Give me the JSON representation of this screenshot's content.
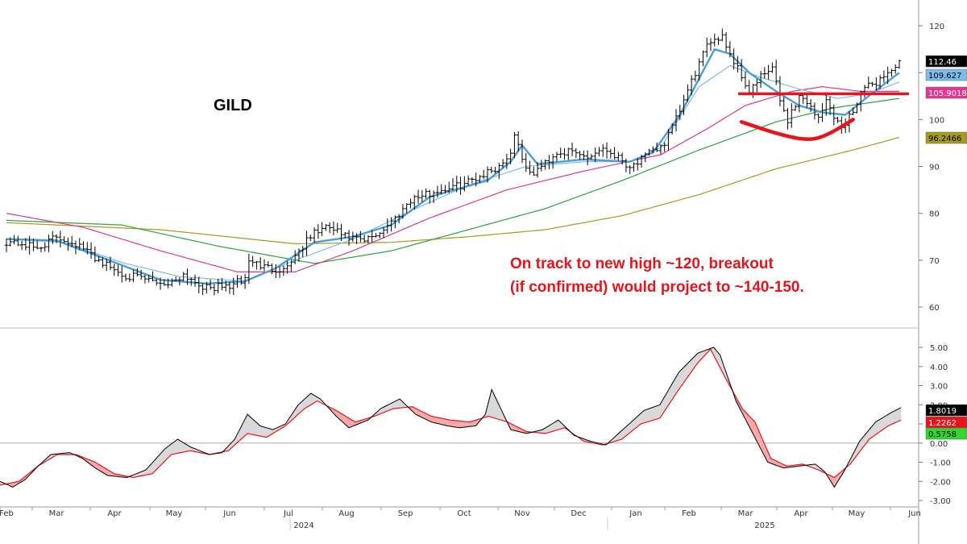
{
  "title": "GILD",
  "annotation": {
    "line1": "On track to new high ~120, breakout",
    "line2": "(if confirmed) would project to ~140-150."
  },
  "chart_data": [
    {
      "type": "line",
      "panel": "price",
      "title": "GILD",
      "y_ticks": [
        60,
        70,
        80,
        90,
        100,
        110,
        120
      ],
      "ylim": [
        57,
        124
      ],
      "grid": false,
      "x_months": [
        "Feb",
        "Mar",
        "Apr",
        "May",
        "Jun",
        "Jul",
        "Aug",
        "Sep",
        "Oct",
        "Nov",
        "Dec",
        "Jan",
        "Feb",
        "Mar",
        "Apr",
        "May",
        "Jun"
      ],
      "x_years": [
        "2024",
        "2025"
      ],
      "price_keypoints": [
        [
          0,
          74
        ],
        [
          4,
          73.5
        ],
        [
          8,
          72.5
        ],
        [
          13,
          75
        ],
        [
          18,
          73.5
        ],
        [
          24,
          70
        ],
        [
          30,
          67
        ],
        [
          38,
          65.5
        ],
        [
          42,
          65
        ],
        [
          46,
          67
        ],
        [
          52,
          64
        ],
        [
          58,
          64.5
        ],
        [
          62,
          66
        ],
        [
          63,
          70
        ],
        [
          67,
          68.5
        ],
        [
          72,
          68
        ],
        [
          76,
          72
        ],
        [
          80,
          76
        ],
        [
          84,
          77
        ],
        [
          88,
          75
        ],
        [
          93,
          74
        ],
        [
          97,
          76
        ],
        [
          101,
          79
        ],
        [
          105,
          83
        ],
        [
          109,
          84
        ],
        [
          113,
          85
        ],
        [
          118,
          86
        ],
        [
          123,
          88
        ],
        [
          128,
          90
        ],
        [
          131,
          93
        ],
        [
          132,
          97
        ],
        [
          134,
          92
        ],
        [
          136,
          88
        ],
        [
          139,
          90
        ],
        [
          143,
          93
        ],
        [
          147,
          93
        ],
        [
          151,
          92
        ],
        [
          155,
          94
        ],
        [
          159,
          92
        ],
        [
          162,
          90
        ],
        [
          166,
          92
        ],
        [
          171,
          95
        ],
        [
          174,
          100
        ],
        [
          177,
          106
        ],
        [
          180,
          112
        ],
        [
          183,
          117
        ],
        [
          186,
          118
        ],
        [
          188,
          114
        ],
        [
          190,
          111
        ],
        [
          193,
          106
        ],
        [
          196,
          109
        ],
        [
          199,
          111
        ],
        [
          201,
          104
        ],
        [
          203,
          100
        ],
        [
          206,
          105
        ],
        [
          209,
          103
        ],
        [
          211,
          100
        ],
        [
          213,
          104
        ],
        [
          215,
          101
        ],
        [
          217,
          98
        ],
        [
          220,
          102
        ],
        [
          222,
          106
        ],
        [
          226,
          108
        ],
        [
          229,
          110
        ],
        [
          232,
          112
        ]
      ],
      "series": [
        {
          "name": "112.46",
          "color": "#000000",
          "style": "ohlc",
          "last": 112.46
        },
        {
          "name": "109.627",
          "color": "#4a9ed8",
          "last": 109.627
        },
        {
          "name": "105.9018",
          "color": "#e0368f",
          "last": 105.9018
        },
        {
          "name": "",
          "color": "#2aa33a",
          "last": 104.5
        },
        {
          "name": "96.2466",
          "color": "#a79a1c",
          "last": 96.2466
        }
      ],
      "ma_keypoints": {
        "fast": [
          [
            0,
            74.5
          ],
          [
            13,
            74.2
          ],
          [
            25,
            70.5
          ],
          [
            40,
            65.8
          ],
          [
            52,
            65
          ],
          [
            62,
            65.5
          ],
          [
            70,
            68.3
          ],
          [
            80,
            73.8
          ],
          [
            90,
            75
          ],
          [
            100,
            77.5
          ],
          [
            110,
            83.5
          ],
          [
            125,
            87
          ],
          [
            131,
            91
          ],
          [
            134,
            94.5
          ],
          [
            138,
            90.5
          ],
          [
            150,
            91.5
          ],
          [
            162,
            91
          ],
          [
            168,
            93
          ],
          [
            175,
            101
          ],
          [
            184,
            115
          ],
          [
            188,
            114
          ],
          [
            193,
            110
          ],
          [
            200,
            106
          ],
          [
            206,
            103
          ],
          [
            212,
            101.5
          ],
          [
            218,
            101
          ],
          [
            224,
            105
          ],
          [
            232,
            110
          ]
        ],
        "medium": [
          [
            0,
            74.5
          ],
          [
            15,
            73.8
          ],
          [
            30,
            69.5
          ],
          [
            45,
            66.5
          ],
          [
            62,
            65.5
          ],
          [
            75,
            70
          ],
          [
            90,
            74.5
          ],
          [
            105,
            80.5
          ],
          [
            120,
            86
          ],
          [
            135,
            90
          ],
          [
            150,
            91
          ],
          [
            162,
            91
          ],
          [
            170,
            94
          ],
          [
            180,
            107
          ],
          [
            188,
            111.5
          ],
          [
            196,
            109
          ],
          [
            206,
            106.5
          ],
          [
            216,
            104.5
          ],
          [
            224,
            105.5
          ],
          [
            232,
            108
          ]
        ],
        "magenta": [
          [
            0,
            80
          ],
          [
            20,
            77
          ],
          [
            40,
            72
          ],
          [
            60,
            67.5
          ],
          [
            75,
            67.5
          ],
          [
            90,
            72
          ],
          [
            110,
            79
          ],
          [
            130,
            85
          ],
          [
            150,
            89
          ],
          [
            170,
            92.5
          ],
          [
            182,
            98
          ],
          [
            192,
            103
          ],
          [
            204,
            106
          ],
          [
            212,
            107
          ],
          [
            222,
            106
          ],
          [
            232,
            106
          ]
        ],
        "green": [
          [
            0,
            78.5
          ],
          [
            30,
            77.5
          ],
          [
            55,
            73
          ],
          [
            80,
            69.3
          ],
          [
            100,
            72
          ],
          [
            120,
            76.5
          ],
          [
            140,
            81
          ],
          [
            160,
            87
          ],
          [
            180,
            93.5
          ],
          [
            200,
            99.5
          ],
          [
            215,
            102.5
          ],
          [
            232,
            104.5
          ]
        ],
        "olive": [
          [
            0,
            78
          ],
          [
            40,
            76.5
          ],
          [
            75,
            73.5
          ],
          [
            100,
            73.8
          ],
          [
            120,
            75
          ],
          [
            140,
            76.5
          ],
          [
            160,
            79.5
          ],
          [
            180,
            84
          ],
          [
            200,
            89.5
          ],
          [
            220,
            93.5
          ],
          [
            232,
            96.2
          ]
        ]
      },
      "overlays": {
        "neckline_level": 105.5,
        "neckline_color": "#e8141b",
        "cup_points": [
          [
            191,
            99.5
          ],
          [
            200,
            97
          ],
          [
            208,
            95.5
          ],
          [
            213,
            96.5
          ],
          [
            220,
            100
          ]
        ],
        "cup_color": "#e8141b"
      }
    },
    {
      "type": "area",
      "panel": "oscillator",
      "y_ticks": [
        -3,
        -2,
        -1,
        0,
        1,
        2,
        3,
        4,
        5
      ],
      "y_tick_labels": [
        "-3.00",
        "-2.00",
        "-1.00",
        "0.00",
        "1.00",
        "2.00",
        "3.00",
        "4.00",
        "5.00"
      ],
      "ylim": [
        -3.3,
        5.6
      ],
      "zero_line": true,
      "series": [
        {
          "name": "1.8019",
          "color": "#000000",
          "last": 1.8019
        },
        {
          "name": "1.2262",
          "color": "#e8141b",
          "last": 1.2262
        },
        {
          "name": "0.5758",
          "color": "#2fd82f",
          "last": 0.5758
        }
      ],
      "fill_up_color": "#d8d8d8",
      "fill_down_color": "#f5a8a8",
      "fast_keypoints": [
        [
          0,
          -2
        ],
        [
          4,
          -2.3
        ],
        [
          8,
          -1.9
        ],
        [
          12,
          -1.2
        ],
        [
          16,
          -0.6
        ],
        [
          22,
          -0.5
        ],
        [
          26,
          -0.8
        ],
        [
          30,
          -1.3
        ],
        [
          34,
          -1.7
        ],
        [
          40,
          -1.8
        ],
        [
          46,
          -1.4
        ],
        [
          52,
          -0.3
        ],
        [
          56,
          0.2
        ],
        [
          60,
          -0.2
        ],
        [
          66,
          -0.6
        ],
        [
          70,
          -0.5
        ],
        [
          74,
          0.2
        ],
        [
          78,
          1.5
        ],
        [
          82,
          0.9
        ],
        [
          86,
          0.7
        ],
        [
          90,
          1
        ],
        [
          94,
          2
        ],
        [
          98,
          2.6
        ],
        [
          101,
          2.3
        ],
        [
          106,
          1.4
        ],
        [
          110,
          0.8
        ],
        [
          116,
          1.2
        ],
        [
          120,
          1.8
        ],
        [
          126,
          2.3
        ],
        [
          131,
          1.5
        ],
        [
          136,
          1.1
        ],
        [
          141,
          0.9
        ],
        [
          145,
          0.8
        ],
        [
          150,
          0.9
        ],
        [
          153,
          1.5
        ],
        [
          155,
          2.8
        ],
        [
          157,
          2.1
        ],
        [
          161,
          0.7
        ],
        [
          166,
          0.5
        ],
        [
          171,
          0.7
        ],
        [
          176,
          1.2
        ],
        [
          181,
          0.4
        ],
        [
          186,
          0.1
        ],
        [
          191,
          -0.1
        ],
        [
          197,
          0.8
        ],
        [
          203,
          1.7
        ],
        [
          208,
          2
        ],
        [
          214,
          3.7
        ],
        [
          220,
          4.7
        ],
        [
          225,
          5
        ],
        [
          227,
          4.6
        ],
        [
          232,
          2.2
        ],
        [
          237,
          0.6
        ],
        [
          242,
          -1
        ],
        [
          247,
          -1.3
        ],
        [
          252,
          -1.2
        ],
        [
          257,
          -1.1
        ],
        [
          260,
          -1.5
        ],
        [
          263,
          -2.3
        ],
        [
          266,
          -1.5
        ],
        [
          271,
          0.1
        ],
        [
          276,
          1.1
        ],
        [
          281,
          1.6
        ],
        [
          284,
          1.85
        ]
      ],
      "slow_keypoints": [
        [
          0,
          -2.2
        ],
        [
          6,
          -2
        ],
        [
          12,
          -1.2
        ],
        [
          18,
          -0.6
        ],
        [
          24,
          -0.6
        ],
        [
          30,
          -1
        ],
        [
          36,
          -1.6
        ],
        [
          42,
          -1.8
        ],
        [
          48,
          -1.6
        ],
        [
          54,
          -0.6
        ],
        [
          60,
          -0.4
        ],
        [
          66,
          -0.6
        ],
        [
          72,
          -0.4
        ],
        [
          78,
          0.5
        ],
        [
          84,
          0.3
        ],
        [
          90,
          0.9
        ],
        [
          96,
          1.8
        ],
        [
          100,
          2.2
        ],
        [
          106,
          1.7
        ],
        [
          112,
          1.1
        ],
        [
          118,
          1.4
        ],
        [
          124,
          1.8
        ],
        [
          130,
          1.9
        ],
        [
          136,
          1.4
        ],
        [
          142,
          1.2
        ],
        [
          148,
          1.1
        ],
        [
          154,
          1.4
        ],
        [
          160,
          1.1
        ],
        [
          166,
          0.6
        ],
        [
          172,
          0.5
        ],
        [
          178,
          0.8
        ],
        [
          184,
          0.1
        ],
        [
          190,
          -0.1
        ],
        [
          196,
          0.2
        ],
        [
          202,
          1
        ],
        [
          208,
          1.3
        ],
        [
          214,
          2.8
        ],
        [
          220,
          4.2
        ],
        [
          224,
          4.9
        ],
        [
          229,
          3.3
        ],
        [
          234,
          1.8
        ],
        [
          238,
          1.1
        ],
        [
          243,
          -0.8
        ],
        [
          248,
          -1.2
        ],
        [
          253,
          -1.1
        ],
        [
          258,
          -1.4
        ],
        [
          263,
          -1.8
        ],
        [
          268,
          -1.1
        ],
        [
          274,
          0.2
        ],
        [
          280,
          0.9
        ],
        [
          284,
          1.2
        ]
      ]
    }
  ]
}
